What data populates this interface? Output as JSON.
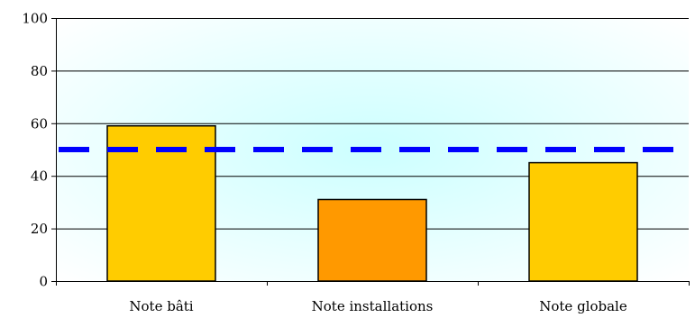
{
  "chart_data": {
    "type": "bar",
    "categories": [
      "Note bâti",
      "Note installations",
      "Note globale"
    ],
    "values": [
      59,
      31,
      45
    ],
    "bar_colors": [
      "#FFCC00",
      "#FF9900",
      "#FFCC00"
    ],
    "bar_stroke": "#000000",
    "reference_line": {
      "value": 50,
      "color": "#0000FF",
      "style": "dashed"
    },
    "ylim": [
      0,
      100
    ],
    "yticks": [
      0,
      20,
      40,
      60,
      80,
      100
    ],
    "gridlines": true,
    "background": {
      "center": "#CCFFFF",
      "edge": "#FFFFFF",
      "style": "radial-gradient"
    },
    "title": "",
    "xlabel": "",
    "ylabel": "",
    "legend": "none"
  }
}
